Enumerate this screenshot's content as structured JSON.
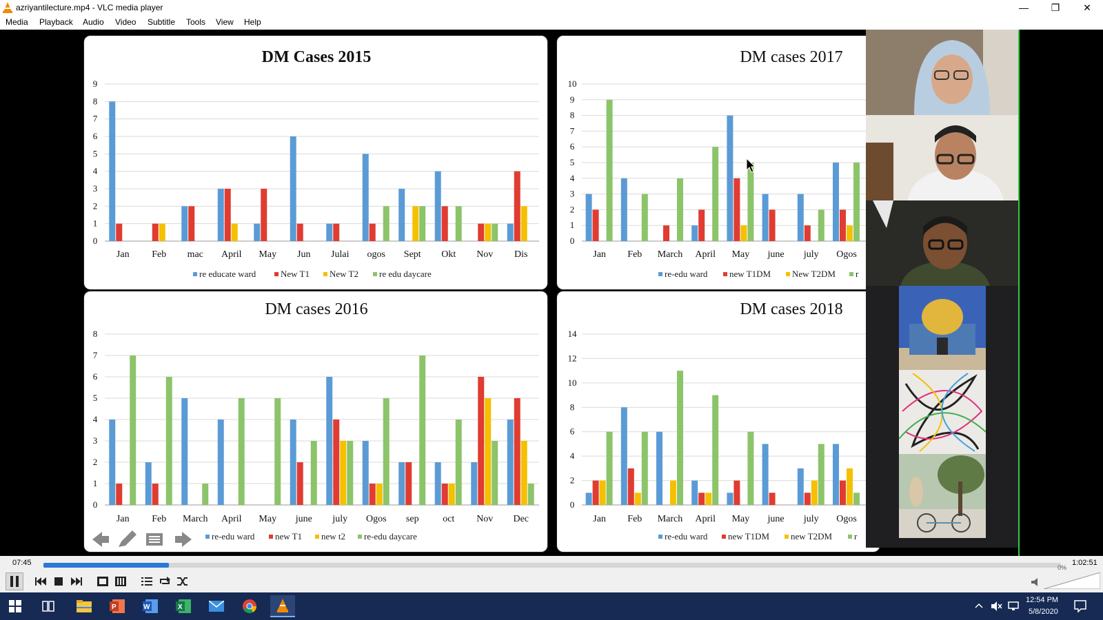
{
  "window": {
    "title": "azriyantilecture.mp4 - VLC media player",
    "minimize_glyph": "—",
    "restore_glyph": "❐",
    "close_glyph": "✕"
  },
  "menu": [
    "Media",
    "Playback",
    "Audio",
    "Video",
    "Subtitle",
    "Tools",
    "View",
    "Help"
  ],
  "player": {
    "elapsed": "07:45",
    "total": "1:02:51",
    "progress_fraction": 0.1233,
    "volume": "0%",
    "button_icons": [
      "pause-icon",
      "previous-icon",
      "stop-icon",
      "next-icon",
      "fullscreen-icon",
      "extended-settings-icon",
      "playlist-icon",
      "loop-icon",
      "shuffle-icon",
      "speaker-icon"
    ]
  },
  "slide_nav_icons": [
    "arrow-left-icon",
    "pen-icon",
    "menu-icon",
    "arrow-right-icon"
  ],
  "participants": [
    {
      "name": "participant-1",
      "icon": "person-hijab-video"
    },
    {
      "name": "participant-2",
      "icon": "person-glasses-video"
    },
    {
      "name": "participant-3",
      "icon": "person-dark-video"
    },
    {
      "name": "participant-4",
      "icon": "dome-mosque-picture"
    },
    {
      "name": "participant-5",
      "icon": "colorful-lines-picture"
    },
    {
      "name": "participant-6",
      "icon": "person-bicycle-picture"
    }
  ],
  "taskbar": {
    "time": "12:54 PM",
    "date": "5/8/2020",
    "icons": [
      "start-icon",
      "task-view-icon",
      "file-explorer-icon",
      "powerpoint-icon",
      "word-icon",
      "excel-icon",
      "mail-icon",
      "chrome-icon",
      "vlc-icon"
    ],
    "tray_icons": [
      "tray-chevron-icon",
      "volume-muted-icon",
      "network-icon",
      "notification-icon"
    ]
  },
  "colors": {
    "blue": "#5b9bd5",
    "red": "#e03c31",
    "yellow": "#f5c000",
    "green": "#8cc46a"
  },
  "chart_data": [
    {
      "type": "bar",
      "title": "DM Cases 2015",
      "categories": [
        "Jan",
        "Feb",
        "mac",
        "April",
        "May",
        "Jun",
        "Julai",
        "ogos",
        "Sept",
        "Okt",
        "Nov",
        "Dis"
      ],
      "ylim": [
        0,
        9
      ],
      "yticks": [
        0,
        1,
        2,
        3,
        4,
        5,
        6,
        7,
        8,
        9
      ],
      "grid": true,
      "legend_position": "bottom",
      "series": [
        {
          "name": "re educate ward",
          "color": "#5b9bd5",
          "values": [
            8,
            0,
            2,
            3,
            1,
            6,
            1,
            5,
            3,
            4,
            0,
            1
          ]
        },
        {
          "name": "New T1",
          "color": "#e03c31",
          "values": [
            1,
            1,
            2,
            3,
            3,
            1,
            1,
            1,
            0,
            2,
            1,
            4
          ]
        },
        {
          "name": "New T2",
          "color": "#f5c000",
          "values": [
            0,
            1,
            0,
            1,
            0,
            0,
            0,
            0,
            2,
            0,
            1,
            2
          ]
        },
        {
          "name": "re edu daycare",
          "color": "#8cc46a",
          "values": [
            0,
            0,
            0,
            0,
            0,
            0,
            0,
            2,
            2,
            2,
            1,
            0
          ]
        }
      ]
    },
    {
      "type": "bar",
      "title": "DM cases 2017",
      "categories": [
        "Jan",
        "Feb",
        "March",
        "April",
        "May",
        "june",
        "july",
        "Ogos"
      ],
      "ylim": [
        0,
        10
      ],
      "yticks": [
        0,
        1,
        2,
        3,
        4,
        5,
        6,
        7,
        8,
        9,
        10
      ],
      "grid": true,
      "legend_position": "bottom",
      "series": [
        {
          "name": "re-edu ward",
          "color": "#5b9bd5",
          "values": [
            3,
            4,
            0,
            1,
            8,
            3,
            3,
            5
          ]
        },
        {
          "name": "new T1DM",
          "color": "#e03c31",
          "values": [
            2,
            0,
            1,
            2,
            4,
            2,
            1,
            2
          ]
        },
        {
          "name": "New T2DM",
          "color": "#f5c000",
          "values": [
            0,
            0,
            0,
            0,
            1,
            0,
            0,
            1
          ]
        },
        {
          "name": "r",
          "color": "#8cc46a",
          "values": [
            9,
            3,
            4,
            6,
            5,
            0,
            2,
            5
          ]
        }
      ]
    },
    {
      "type": "bar",
      "title": "DM cases 2016",
      "categories": [
        "Jan",
        "Feb",
        "March",
        "April",
        "May",
        "june",
        "july",
        "Ogos",
        "sep",
        "oct",
        "Nov",
        "Dec"
      ],
      "ylim": [
        0,
        8
      ],
      "yticks": [
        0,
        1,
        2,
        3,
        4,
        5,
        6,
        7,
        8
      ],
      "grid": true,
      "legend_position": "bottom",
      "series": [
        {
          "name": "re-edu ward",
          "color": "#5b9bd5",
          "values": [
            4,
            2,
            5,
            4,
            0,
            4,
            6,
            3,
            2,
            2,
            2,
            4
          ]
        },
        {
          "name": "new T1",
          "color": "#e03c31",
          "values": [
            1,
            1,
            0,
            0,
            0,
            2,
            4,
            1,
            2,
            1,
            6,
            5
          ]
        },
        {
          "name": "new t2",
          "color": "#f5c000",
          "values": [
            0,
            0,
            0,
            0,
            0,
            0,
            3,
            1,
            0,
            1,
            5,
            3
          ]
        },
        {
          "name": "re-edu daycare",
          "color": "#8cc46a",
          "values": [
            7,
            6,
            1,
            5,
            5,
            3,
            3,
            5,
            7,
            4,
            3,
            1
          ]
        }
      ]
    },
    {
      "type": "bar",
      "title": "DM cases 2018",
      "categories": [
        "Jan",
        "Feb",
        "March",
        "April",
        "May",
        "june",
        "july",
        "Ogos"
      ],
      "ylim": [
        0,
        14
      ],
      "yticks": [
        0,
        2,
        4,
        6,
        8,
        10,
        12,
        14
      ],
      "grid": true,
      "legend_position": "bottom",
      "series": [
        {
          "name": "re-edu ward",
          "color": "#5b9bd5",
          "values": [
            1,
            8,
            6,
            2,
            1,
            5,
            3,
            5
          ]
        },
        {
          "name": "new T1DM",
          "color": "#e03c31",
          "values": [
            2,
            3,
            0,
            1,
            2,
            1,
            1,
            2
          ]
        },
        {
          "name": "new T2DM",
          "color": "#f5c000",
          "values": [
            2,
            1,
            2,
            1,
            0,
            0,
            2,
            3
          ]
        },
        {
          "name": "r",
          "color": "#8cc46a",
          "values": [
            6,
            6,
            11,
            9,
            6,
            0,
            5,
            1
          ]
        }
      ]
    }
  ]
}
